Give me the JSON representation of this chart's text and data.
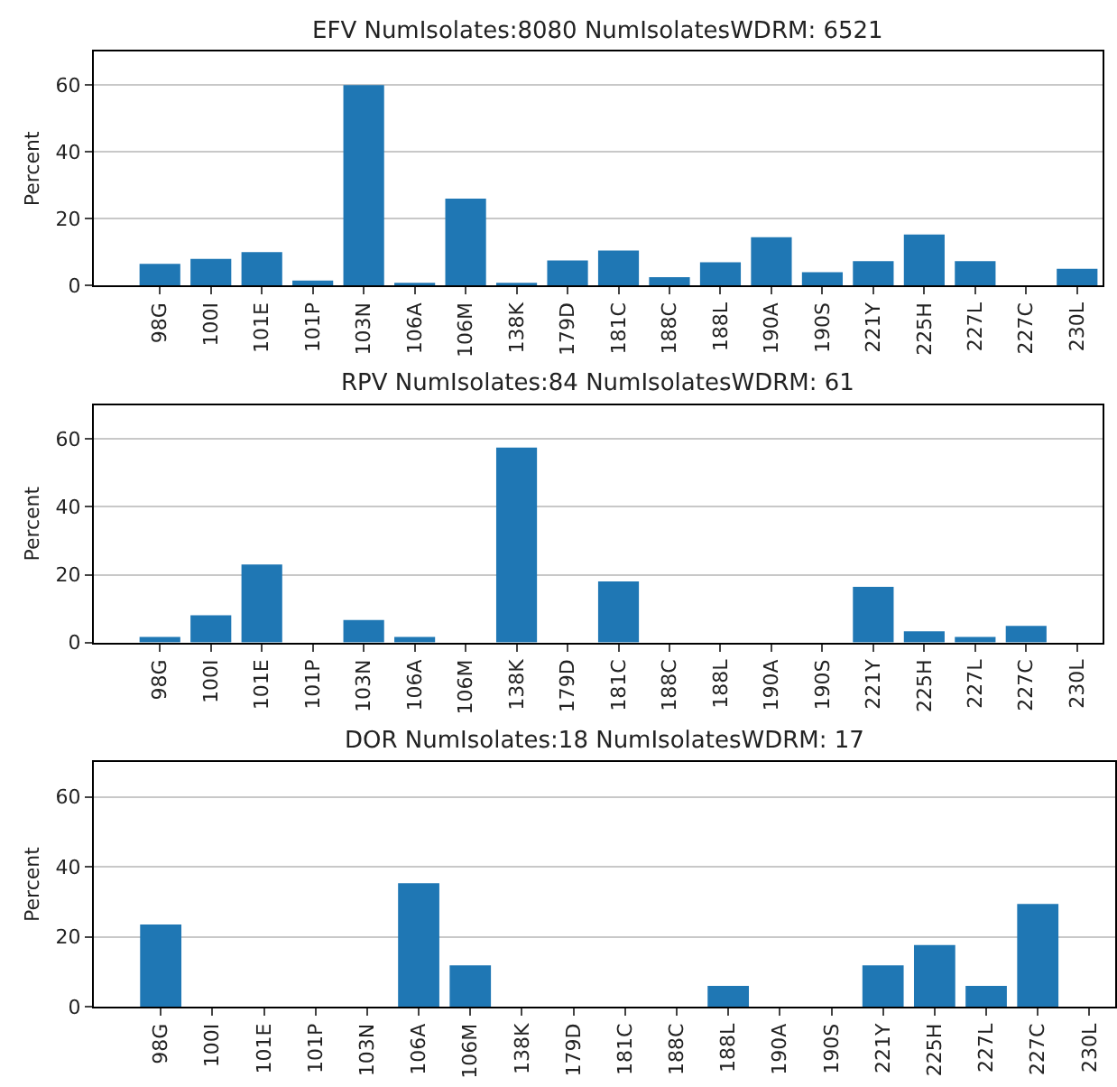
{
  "chart_data": [
    {
      "type": "bar",
      "title": "EFV NumIsolates:8080 NumIsolatesWDRM: 6521",
      "ylabel": "Percent",
      "categories": [
        "98G",
        "100I",
        "101E",
        "101P",
        "103N",
        "106A",
        "106M",
        "138K",
        "179D",
        "181C",
        "188C",
        "188L",
        "190A",
        "190S",
        "221Y",
        "225H",
        "227L",
        "227C",
        "230L"
      ],
      "values": [
        6.5,
        8,
        10,
        1.5,
        60,
        0.8,
        26,
        0.7,
        7.5,
        10.5,
        2.5,
        7,
        14.5,
        4,
        7.3,
        15.3,
        7.3,
        0,
        5
      ],
      "color": "#1f77b4",
      "ylim": [
        0,
        70
      ],
      "yticks": [
        0,
        20,
        40,
        60
      ],
      "grid": "y"
    },
    {
      "type": "bar",
      "title": "RPV NumIsolates:84 NumIsolatesWDRM: 61",
      "ylabel": "Percent",
      "categories": [
        "98G",
        "100I",
        "101E",
        "101P",
        "103N",
        "106A",
        "106M",
        "138K",
        "179D",
        "181C",
        "188C",
        "188L",
        "190A",
        "190S",
        "221Y",
        "225H",
        "227L",
        "227C",
        "230L"
      ],
      "values": [
        1.6,
        8,
        23,
        0,
        6.6,
        1.6,
        0,
        57.5,
        0,
        18,
        0,
        0,
        0,
        0,
        16.4,
        3.3,
        1.6,
        4.9,
        0
      ],
      "color": "#1f77b4",
      "ylim": [
        0,
        70
      ],
      "yticks": [
        0,
        20,
        40,
        60
      ],
      "grid": "y"
    },
    {
      "type": "bar",
      "title": "DOR NumIsolates:18 NumIsolatesWDRM: 17",
      "ylabel": "Percent",
      "categories": [
        "98G",
        "100I",
        "101E",
        "101P",
        "103N",
        "106A",
        "106M",
        "138K",
        "179D",
        "181C",
        "188C",
        "188L",
        "190A",
        "190S",
        "221Y",
        "225H",
        "227L",
        "227C",
        "230L"
      ],
      "values": [
        23.5,
        0,
        0,
        0,
        0,
        35.3,
        11.8,
        0,
        0,
        0,
        0,
        5.9,
        0,
        0,
        11.8,
        17.6,
        5.9,
        29.4,
        0
      ],
      "color": "#1f77b4",
      "ylim": [
        0,
        70
      ],
      "yticks": [
        0,
        20,
        40,
        60
      ],
      "grid": "y"
    }
  ]
}
